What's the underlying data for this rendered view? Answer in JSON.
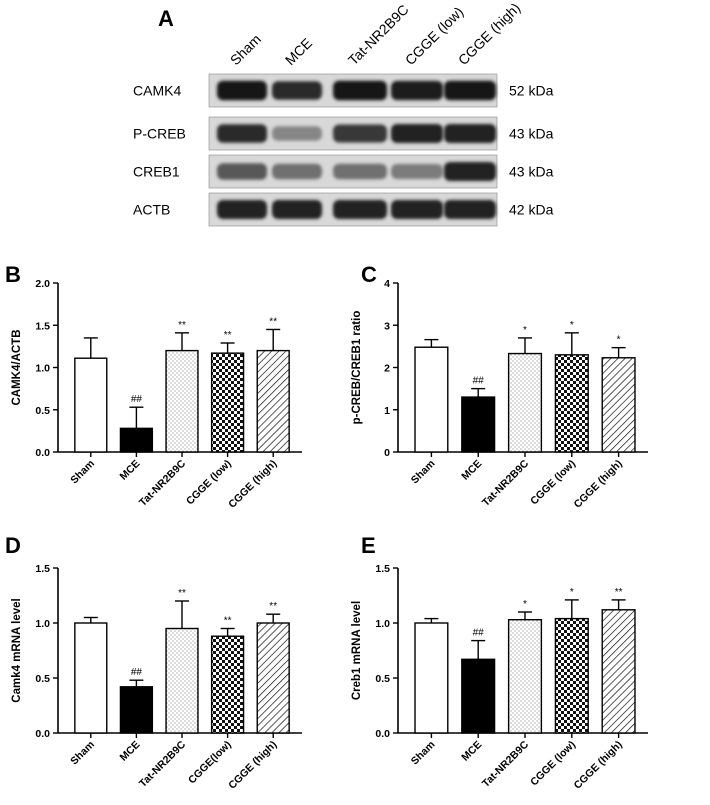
{
  "blot": {
    "letter": "A",
    "lanes": [
      "Sham",
      "MCE",
      "Tat-NR2B9C",
      "CGGE (low)",
      "CGGE (high)"
    ],
    "rows": [
      {
        "name": "CAMK4",
        "size": "52 kDa",
        "intensity": [
          0.95,
          0.85,
          0.95,
          0.92,
          0.95
        ]
      },
      {
        "name": "P-CREB",
        "size": "43 kDa",
        "intensity": [
          0.85,
          0.45,
          0.8,
          0.9,
          0.9
        ]
      },
      {
        "name": "CREB1",
        "size": "43 kDa",
        "intensity": [
          0.65,
          0.55,
          0.55,
          0.5,
          0.9
        ]
      },
      {
        "name": "ACTB",
        "size": "42 kDa",
        "intensity": [
          0.9,
          0.9,
          0.9,
          0.9,
          0.9
        ]
      }
    ]
  },
  "chart_data": [
    {
      "letter": "B",
      "type": "bar",
      "ylabel": "CAMK4/ACTB",
      "categories": [
        "Sham",
        "MCE",
        "Tat-NR2B9C",
        "CGGE (low)",
        "CGGE (high)"
      ],
      "values": [
        1.11,
        0.28,
        1.2,
        1.17,
        1.2
      ],
      "errors": [
        0.24,
        0.25,
        0.21,
        0.12,
        0.25
      ],
      "significance": [
        "",
        "##",
        "**",
        "**",
        "**"
      ],
      "ylim": [
        0,
        2.0
      ],
      "yticks": [
        "0.0",
        "0.5",
        "1.0",
        "1.5",
        "2.0"
      ]
    },
    {
      "letter": "C",
      "type": "bar",
      "ylabel": "p-CREB/CREB1 ratio",
      "categories": [
        "Sham",
        "MCE",
        "Tat-NR2B9C",
        "CGGE (low)",
        "CGGE (high)"
      ],
      "values": [
        2.48,
        1.3,
        2.33,
        2.3,
        2.23
      ],
      "errors": [
        0.18,
        0.2,
        0.37,
        0.52,
        0.24
      ],
      "significance": [
        "",
        "##",
        "*",
        "*",
        "*"
      ],
      "ylim": [
        0,
        4
      ],
      "yticks": [
        "0",
        "1",
        "2",
        "3",
        "4"
      ]
    },
    {
      "letter": "D",
      "type": "bar",
      "ylabel": "Camk4 mRNA level",
      "categories": [
        "Sham",
        "MCE",
        "Tat-NR2B9C",
        "CGGE(low)",
        "CGGE (high)"
      ],
      "values": [
        1.0,
        0.42,
        0.95,
        0.88,
        1.0
      ],
      "errors": [
        0.05,
        0.06,
        0.25,
        0.07,
        0.08
      ],
      "significance": [
        "",
        "##",
        "**",
        "**",
        "**"
      ],
      "ylim": [
        0,
        1.5
      ],
      "yticks": [
        "0.0",
        "0.5",
        "1.0",
        "1.5"
      ]
    },
    {
      "letter": "E",
      "type": "bar",
      "ylabel": "Creb1 mRNA level",
      "categories": [
        "Sham",
        "MCE",
        "Tat-NR2B9C",
        "CGGE (low)",
        "CGGE (high)"
      ],
      "values": [
        1.0,
        0.67,
        1.03,
        1.04,
        1.12
      ],
      "errors": [
        0.04,
        0.17,
        0.07,
        0.17,
        0.09
      ],
      "significance": [
        "",
        "##",
        "*",
        "*",
        "**"
      ],
      "ylim": [
        0,
        1.5
      ],
      "yticks": [
        "0.0",
        "0.5",
        "1.0",
        "1.5"
      ]
    }
  ]
}
